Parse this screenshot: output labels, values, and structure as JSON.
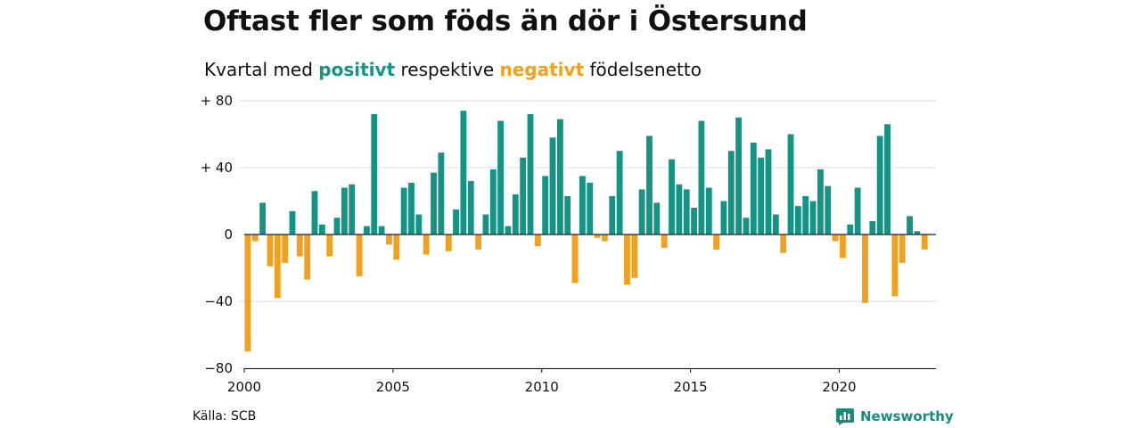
{
  "header": {
    "title": "Oftast fler som föds än dör i Östersund",
    "subtitle_prefix": "Kvartal med",
    "subtitle_positive": "positivt",
    "subtitle_middle": "respektive",
    "subtitle_negative": "negativt",
    "subtitle_suffix": "födelsenetto"
  },
  "footer": {
    "source": "Källa: SCB",
    "brand": "Newsworthy"
  },
  "colors": {
    "positive": "#149485",
    "negative": "#F2A01F",
    "grid": "#dddddd",
    "zero_line": "#222222",
    "brand": "#1a8a7d"
  },
  "icons": {
    "brand": "newsworthy-logo-icon"
  },
  "chart_data": {
    "type": "bar",
    "x_start": 2000.0,
    "x_step": 0.25,
    "xlim": [
      2000,
      2023.25
    ],
    "ylim": [
      -80,
      80
    ],
    "y_ticks": [
      {
        "value": 80,
        "label": "+ 80"
      },
      {
        "value": 40,
        "label": "+ 40"
      },
      {
        "value": 0,
        "label": "0"
      },
      {
        "value": -40,
        "label": "−40"
      },
      {
        "value": -80,
        "label": "−80"
      }
    ],
    "x_ticks": [
      {
        "value": 2000,
        "label": "2000"
      },
      {
        "value": 2005,
        "label": "2005"
      },
      {
        "value": 2010,
        "label": "2010"
      },
      {
        "value": 2015,
        "label": "2015"
      },
      {
        "value": 2020,
        "label": "2020"
      }
    ],
    "values": [
      -70,
      -4,
      19,
      -19,
      -38,
      -17,
      14,
      -13,
      -27,
      26,
      6,
      -13,
      10,
      28,
      30,
      -25,
      5,
      72,
      5,
      -6,
      -15,
      28,
      31,
      12,
      -12,
      37,
      49,
      -10,
      15,
      74,
      32,
      -9,
      12,
      39,
      68,
      5,
      24,
      46,
      72,
      -7,
      35,
      58,
      69,
      23,
      -29,
      35,
      31,
      -2,
      -4,
      23,
      50,
      -30,
      -26,
      27,
      59,
      19,
      -8,
      45,
      30,
      27,
      16,
      68,
      28,
      -9,
      20,
      50,
      70,
      10,
      55,
      46,
      51,
      12,
      -11,
      60,
      17,
      23,
      20,
      39,
      29,
      -4,
      -14,
      6,
      28,
      -41,
      8,
      59,
      66,
      -37,
      -17,
      11,
      2,
      -9
    ]
  }
}
